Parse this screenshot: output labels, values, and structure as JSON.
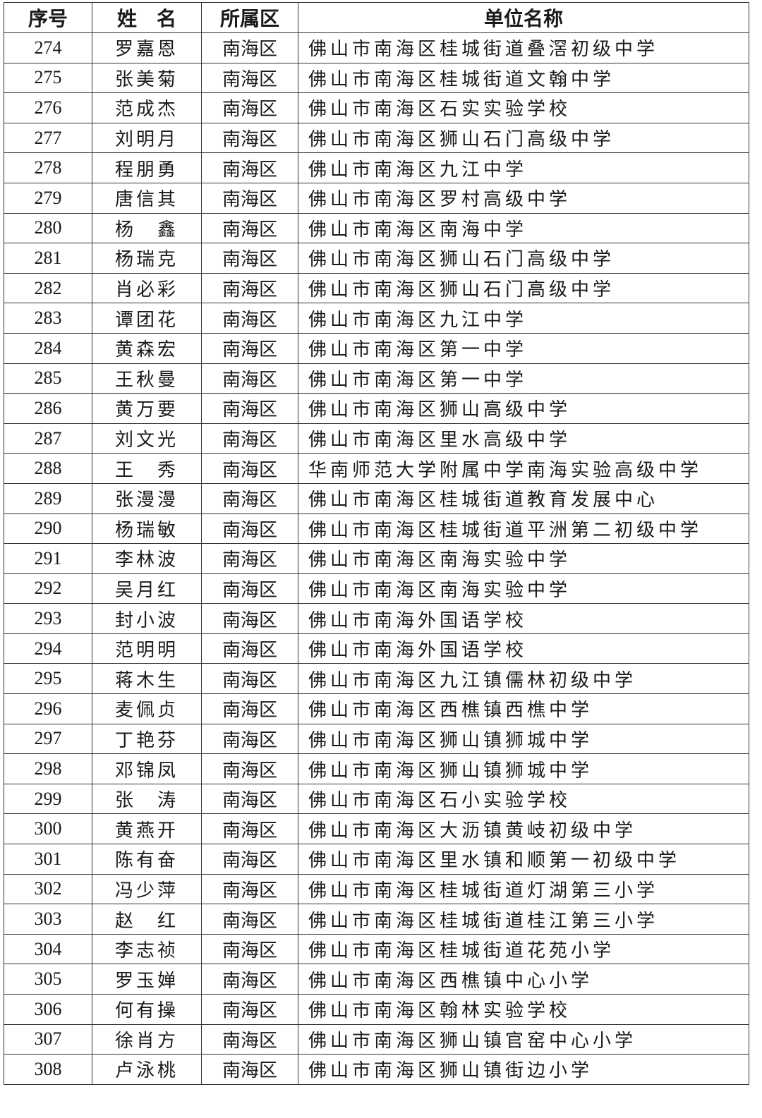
{
  "headers": [
    "序号",
    "姓　名",
    "所属区",
    "单位名称"
  ],
  "rows": [
    [
      "274",
      "罗嘉恩",
      "南海区",
      "佛山市南海区桂城街道叠滘初级中学"
    ],
    [
      "275",
      "张美菊",
      "南海区",
      "佛山市南海区桂城街道文翰中学"
    ],
    [
      "276",
      "范成杰",
      "南海区",
      "佛山市南海区石实实验学校"
    ],
    [
      "277",
      "刘明月",
      "南海区",
      "佛山市南海区狮山石门高级中学"
    ],
    [
      "278",
      "程朋勇",
      "南海区",
      "佛山市南海区九江中学"
    ],
    [
      "279",
      "唐信其",
      "南海区",
      "佛山市南海区罗村高级中学"
    ],
    [
      "280",
      "杨　鑫",
      "南海区",
      "佛山市南海区南海中学"
    ],
    [
      "281",
      "杨瑞克",
      "南海区",
      "佛山市南海区狮山石门高级中学"
    ],
    [
      "282",
      "肖必彩",
      "南海区",
      "佛山市南海区狮山石门高级中学"
    ],
    [
      "283",
      "谭团花",
      "南海区",
      "佛山市南海区九江中学"
    ],
    [
      "284",
      "黄森宏",
      "南海区",
      "佛山市南海区第一中学"
    ],
    [
      "285",
      "王秋曼",
      "南海区",
      "佛山市南海区第一中学"
    ],
    [
      "286",
      "黄万要",
      "南海区",
      "佛山市南海区狮山高级中学"
    ],
    [
      "287",
      "刘文光",
      "南海区",
      "佛山市南海区里水高级中学"
    ],
    [
      "288",
      "王　秀",
      "南海区",
      "华南师范大学附属中学南海实验高级中学"
    ],
    [
      "289",
      "张漫漫",
      "南海区",
      "佛山市南海区桂城街道教育发展中心"
    ],
    [
      "290",
      "杨瑞敏",
      "南海区",
      "佛山市南海区桂城街道平洲第二初级中学"
    ],
    [
      "291",
      "李林波",
      "南海区",
      "佛山市南海区南海实验中学"
    ],
    [
      "292",
      "吴月红",
      "南海区",
      "佛山市南海区南海实验中学"
    ],
    [
      "293",
      "封小波",
      "南海区",
      "佛山市南海外国语学校"
    ],
    [
      "294",
      "范明明",
      "南海区",
      "佛山市南海外国语学校"
    ],
    [
      "295",
      "蒋木生",
      "南海区",
      "佛山市南海区九江镇儒林初级中学"
    ],
    [
      "296",
      "麦佩贞",
      "南海区",
      "佛山市南海区西樵镇西樵中学"
    ],
    [
      "297",
      "丁艳芬",
      "南海区",
      "佛山市南海区狮山镇狮城中学"
    ],
    [
      "298",
      "邓锦凤",
      "南海区",
      "佛山市南海区狮山镇狮城中学"
    ],
    [
      "299",
      "张　涛",
      "南海区",
      "佛山市南海区石小实验学校"
    ],
    [
      "300",
      "黄燕开",
      "南海区",
      "佛山市南海区大沥镇黄岐初级中学"
    ],
    [
      "301",
      "陈有奋",
      "南海区",
      "佛山市南海区里水镇和顺第一初级中学"
    ],
    [
      "302",
      "冯少萍",
      "南海区",
      "佛山市南海区桂城街道灯湖第三小学"
    ],
    [
      "303",
      "赵　红",
      "南海区",
      "佛山市南海区桂城街道桂江第三小学"
    ],
    [
      "304",
      "李志祯",
      "南海区",
      "佛山市南海区桂城街道花苑小学"
    ],
    [
      "305",
      "罗玉婵",
      "南海区",
      "佛山市南海区西樵镇中心小学"
    ],
    [
      "306",
      "何有操",
      "南海区",
      "佛山市南海区翰林实验学校"
    ],
    [
      "307",
      "徐肖方",
      "南海区",
      "佛山市南海区狮山镇官窑中心小学"
    ],
    [
      "308",
      "卢泳桃",
      "南海区",
      "佛山市南海区狮山镇街边小学"
    ]
  ]
}
